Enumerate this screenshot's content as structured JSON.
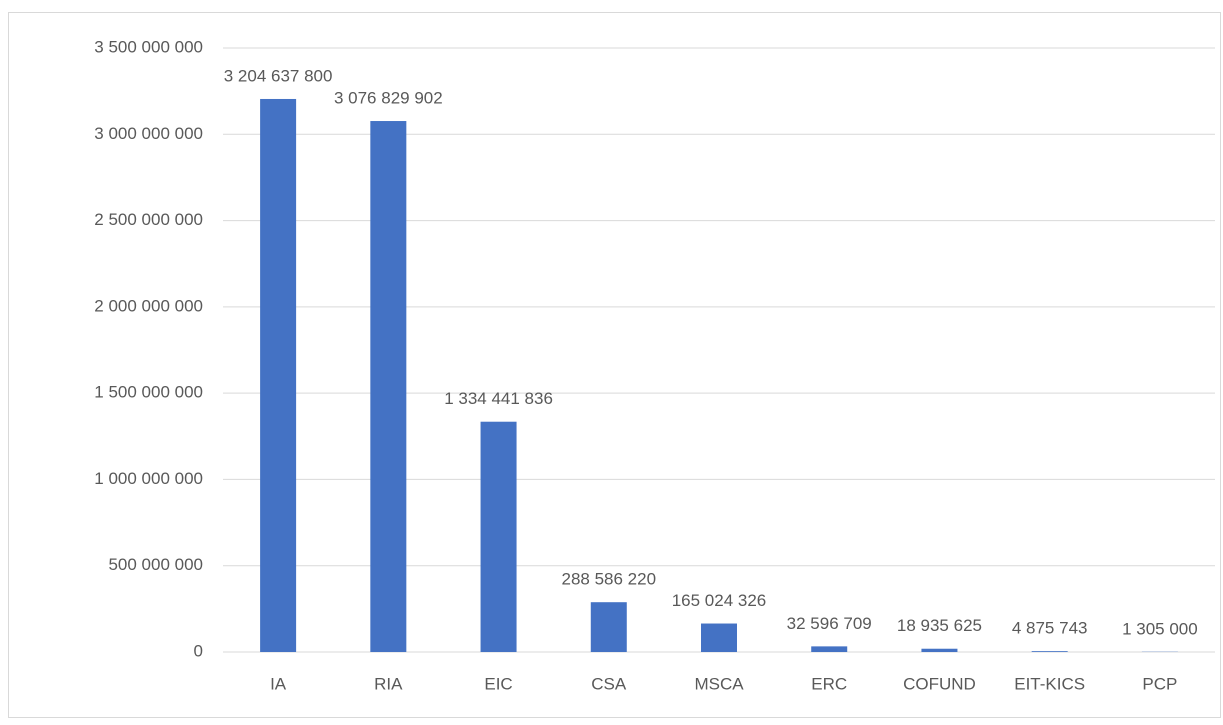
{
  "chart_data": {
    "type": "bar",
    "categories": [
      "IA",
      "RIA",
      "EIC",
      "CSA",
      "MSCA",
      "ERC",
      "COFUND",
      "EIT-KICS",
      "PCP"
    ],
    "values": [
      3204637800,
      3076829902,
      1334441836,
      288586220,
      165024326,
      32596709,
      18935625,
      4875743,
      1305000
    ],
    "value_labels": [
      "3 204 637 800",
      "3 076 829 902",
      "1 334 441 836",
      "288 586 220",
      "165 024 326",
      "32 596 709",
      "18 935 625",
      "4 875 743",
      "1 305 000"
    ],
    "color": "#4472c4",
    "ylim": [
      0,
      3500000000
    ],
    "yticks": [
      0,
      {
        "value": 500000000,
        "label": "500 000 000"
      },
      {
        "value": 1000000000,
        "label": "1 000 000 000"
      },
      {
        "value": 1500000000,
        "label": "1 500 000 000"
      },
      {
        "value": 2000000000,
        "label": "2 000 000 000"
      },
      {
        "value": 2500000000,
        "label": "2 500 000 000"
      },
      {
        "value": 3000000000,
        "label": "3 000 000 000"
      },
      {
        "value": 3500000000,
        "label": "3 500 000 000"
      }
    ],
    "grid": true
  }
}
